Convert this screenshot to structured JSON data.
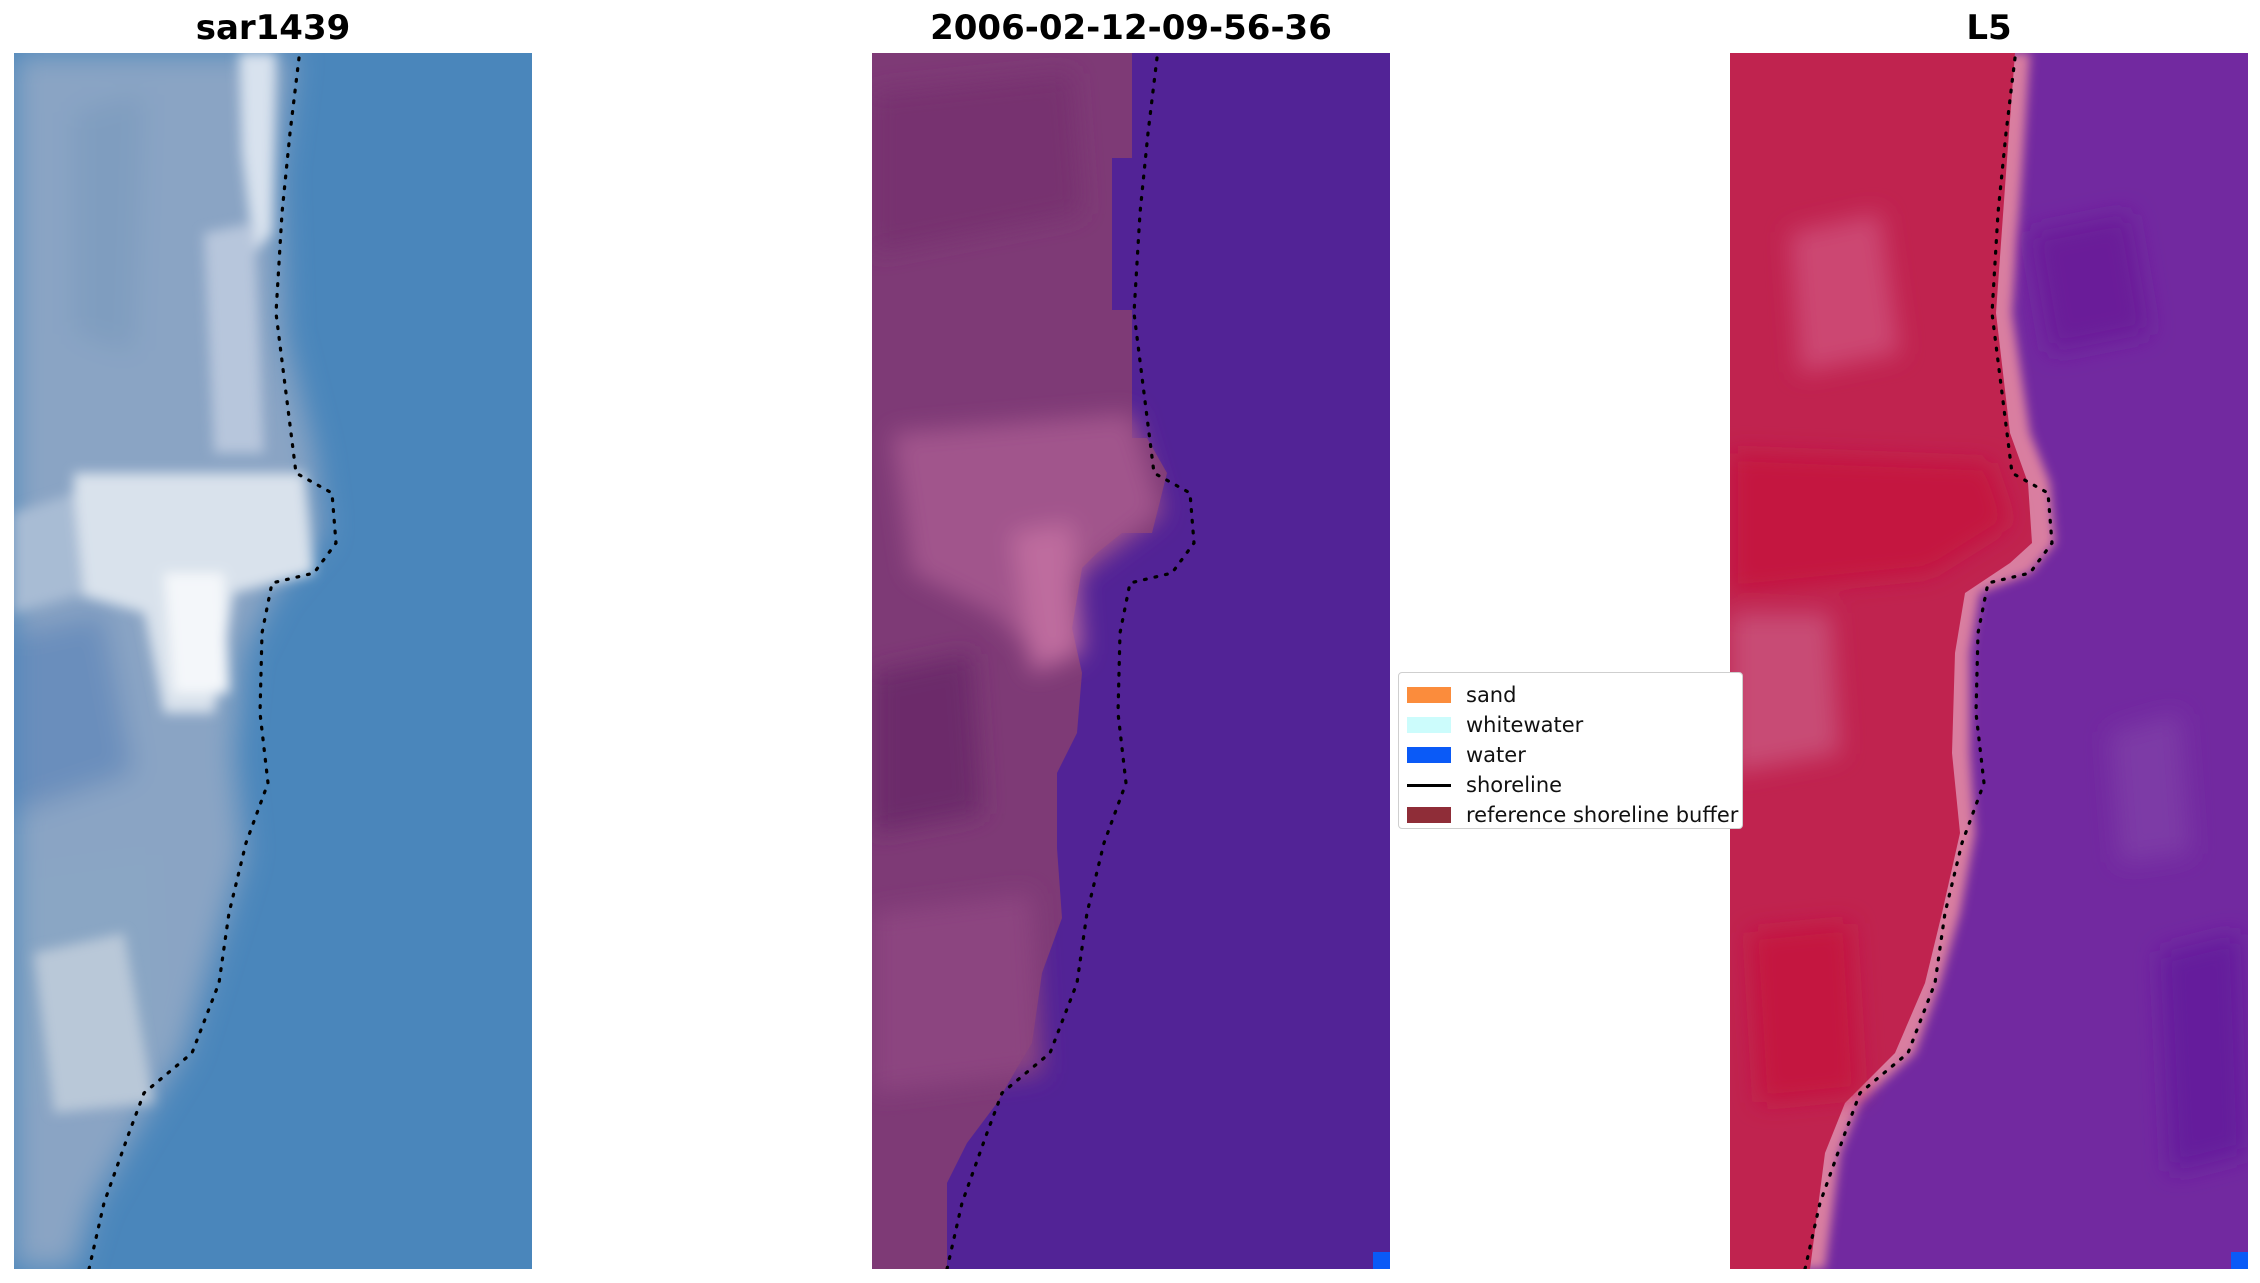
{
  "panels": [
    {
      "title": "sar1439",
      "kind": "rgb-composite"
    },
    {
      "title": "2006-02-12-09-56-36",
      "kind": "classified"
    },
    {
      "title": "L5",
      "kind": "index-map"
    }
  ],
  "legend": {
    "items": [
      {
        "label": "sand",
        "color": "#fb8c3c",
        "kind": "patch"
      },
      {
        "label": "whitewater",
        "color": "#ccfcfc",
        "kind": "patch"
      },
      {
        "label": "water",
        "color": "#0a5af7",
        "kind": "patch"
      },
      {
        "label": "shoreline",
        "color": "#000000",
        "kind": "line"
      },
      {
        "label": "reference shoreline buffer",
        "color": "#8f2d38",
        "kind": "patch"
      }
    ]
  },
  "colors": {
    "shoreline_dots": "#000000",
    "center_water_overlay": "#522396",
    "center_land_overlay": "#7e3a76",
    "left_water": "#4a86bb",
    "left_land": "#8ea7c6",
    "right_land": "#c0234f",
    "right_water": "#7229a0"
  }
}
